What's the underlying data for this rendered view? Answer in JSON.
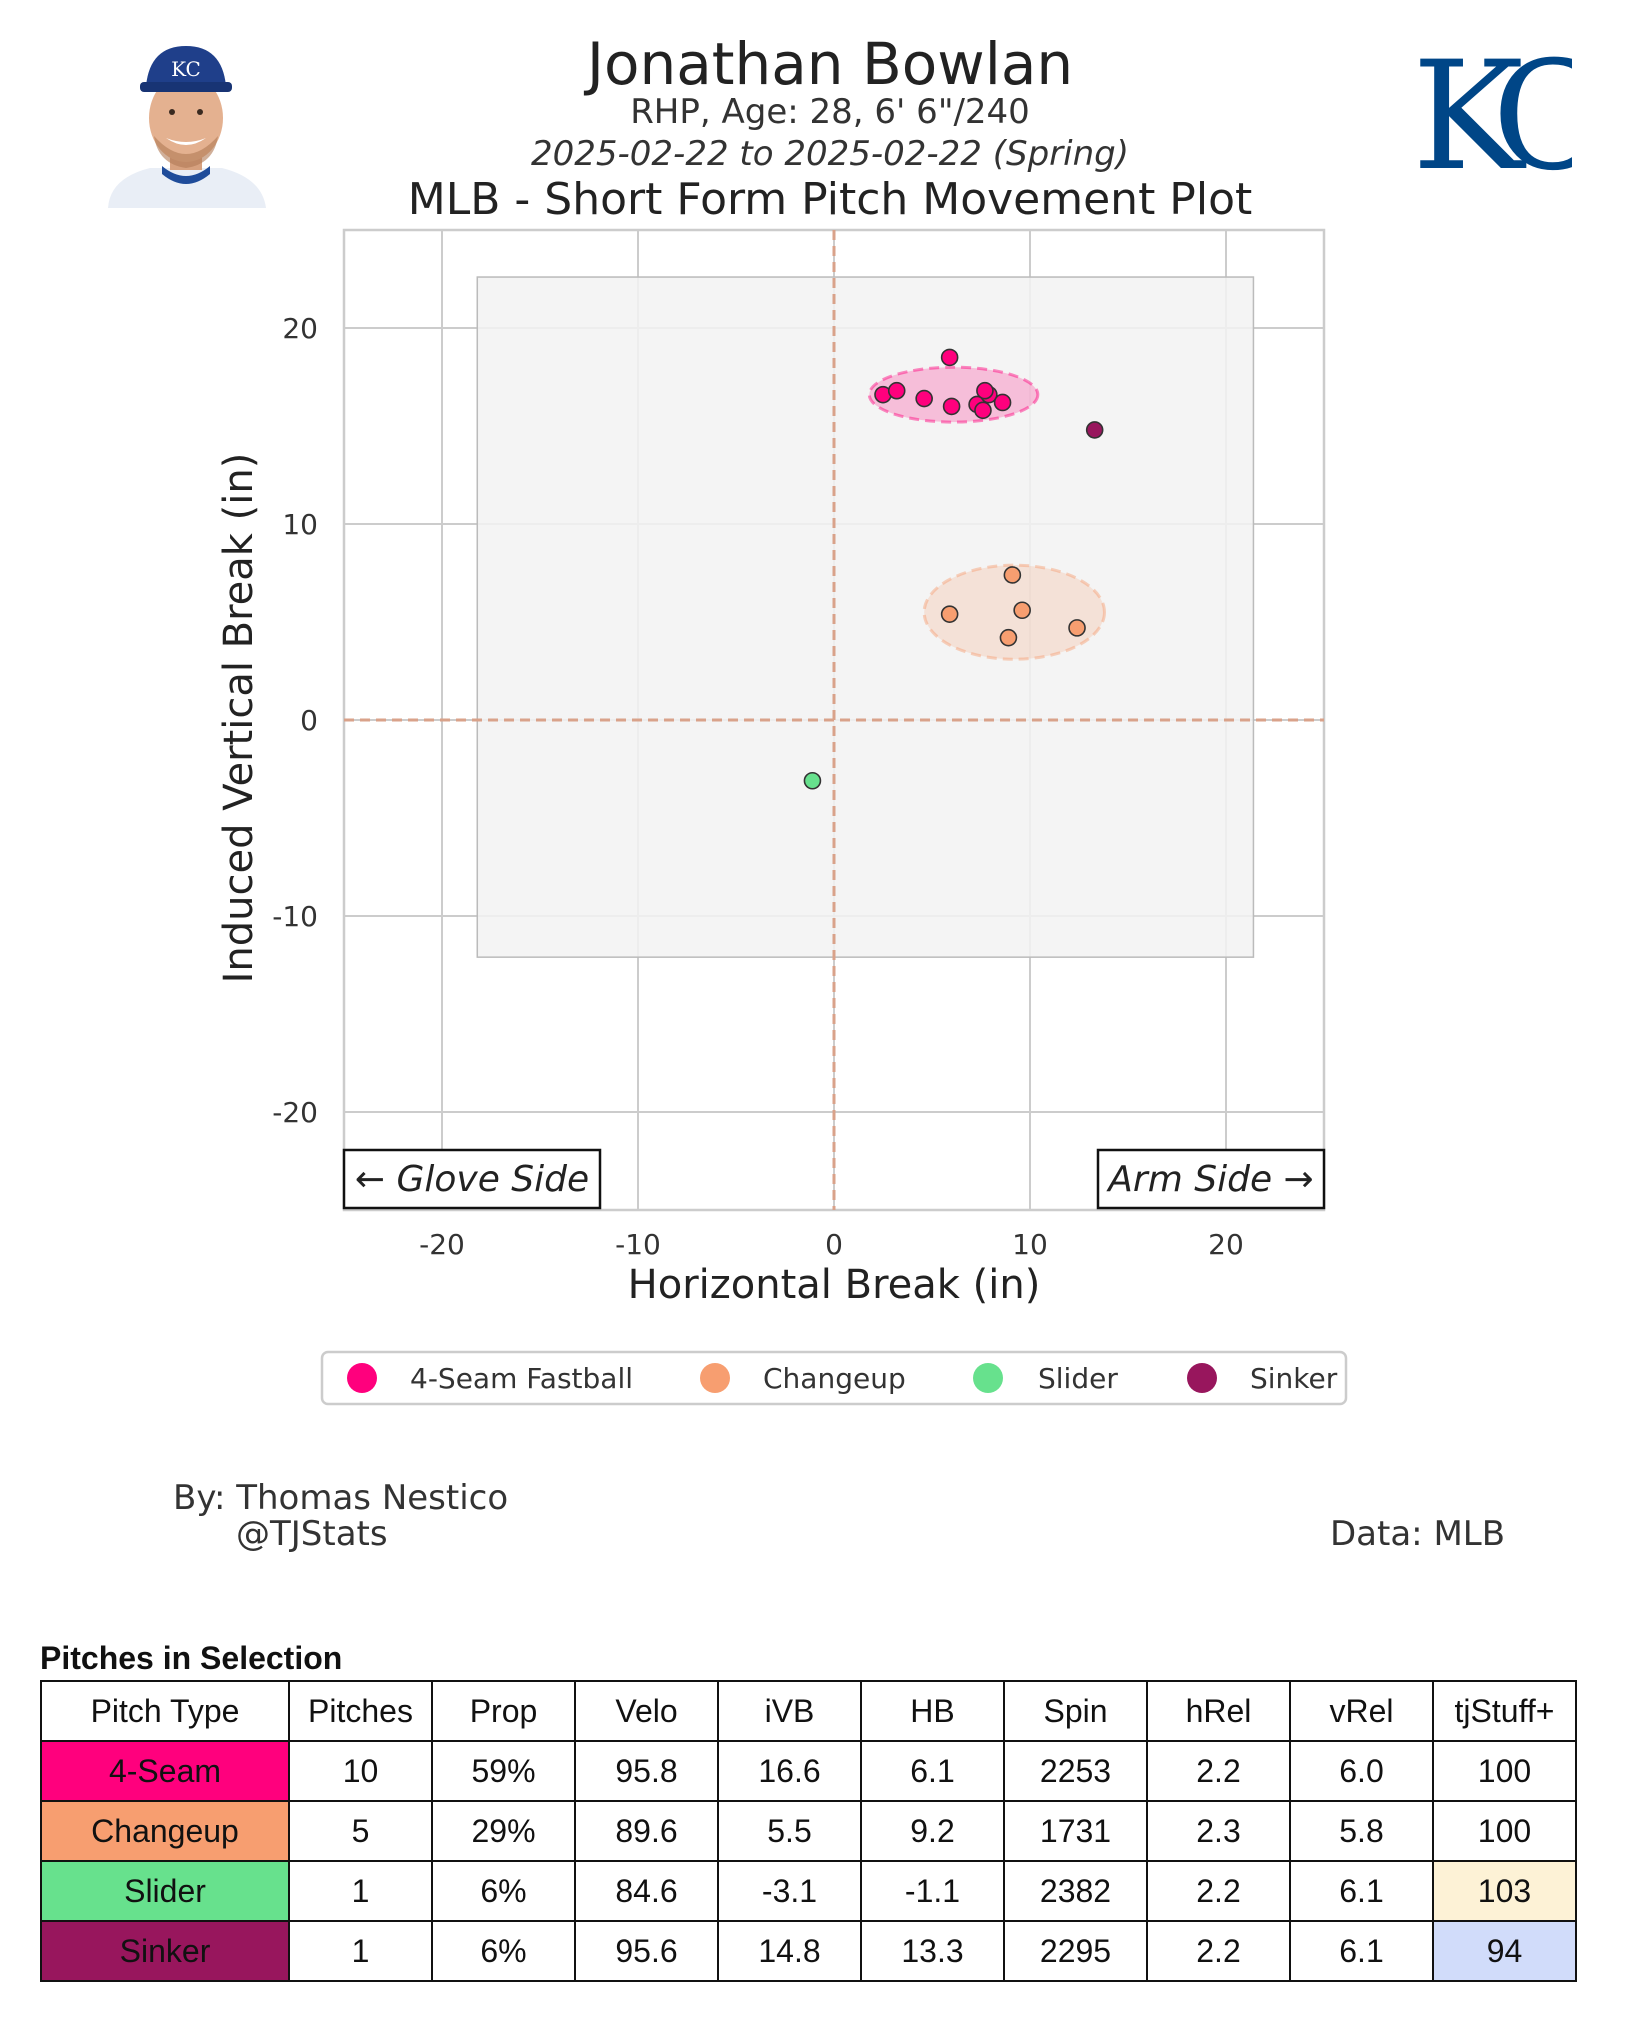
{
  "header": {
    "player_name": "Jonathan Bowlan",
    "player_info": "RHP, Age: 28, 6' 6\"/240",
    "date_range": "2025-02-22 to 2025-02-22 (Spring)",
    "plot_title": "MLB - Short Form Pitch Movement Plot",
    "team_logo_text": "KC",
    "cap_logo_text": "KC"
  },
  "colors": {
    "four_seam": "#FF007D",
    "changeup": "#F79E70",
    "slider": "#67E18D",
    "sinker": "#98165D",
    "plot_box": "#f2f2f2",
    "grid": "#cccccc",
    "zero_line": "#d9a28a",
    "kc_blue": "#004687",
    "stuff_high": "#fdf2d6",
    "stuff_low": "#d1dcfa"
  },
  "chart_data": {
    "type": "scatter",
    "title": "MLB - Short Form Pitch Movement Plot",
    "xlabel": "Horizontal Break (in)",
    "ylabel": "Induced Vertical Break (in)",
    "xlim": [
      -25,
      25
    ],
    "ylim": [
      -25,
      25
    ],
    "xticks": [
      -20,
      -10,
      0,
      10,
      20
    ],
    "yticks": [
      20,
      10,
      0,
      -10,
      -20
    ],
    "xtick_labels": [
      "-20",
      "-10",
      "0",
      "10",
      "20"
    ],
    "ytick_labels": [
      "20",
      "10",
      "0",
      "-10",
      "-20"
    ],
    "grid": true,
    "zone_box": {
      "x": [
        -18.2,
        21.4
      ],
      "y": [
        -12.1,
        22.6
      ]
    },
    "annotations": {
      "glove_side": "← Glove Side",
      "arm_side": "Arm Side →"
    },
    "legend": {
      "position": "bottom-center",
      "entries": [
        "4-Seam Fastball",
        "Changeup",
        "Slider",
        "Sinker"
      ]
    },
    "series": [
      {
        "name": "4-Seam Fastball",
        "color": "#FF007D",
        "x": [
          2.5,
          3.2,
          4.6,
          5.9,
          6.0,
          7.3,
          7.6,
          7.9,
          7.7,
          8.6
        ],
        "y": [
          16.6,
          16.8,
          16.4,
          18.5,
          16.0,
          16.1,
          15.8,
          16.6,
          16.8,
          16.2
        ],
        "ellipse": {
          "cx": 6.1,
          "cy": 16.6,
          "rx": 4.3,
          "ry": 1.4
        }
      },
      {
        "name": "Changeup",
        "color": "#F79E70",
        "x": [
          5.9,
          9.1,
          9.6,
          8.9,
          12.4
        ],
        "y": [
          5.4,
          7.4,
          5.6,
          4.2,
          4.7
        ],
        "ellipse": {
          "cx": 9.2,
          "cy": 5.5,
          "rx": 4.6,
          "ry": 2.4
        }
      },
      {
        "name": "Slider",
        "color": "#67E18D",
        "x": [
          -1.1
        ],
        "y": [
          -3.1
        ]
      },
      {
        "name": "Sinker",
        "color": "#98165D",
        "x": [
          13.3
        ],
        "y": [
          14.8
        ]
      }
    ]
  },
  "credits": {
    "by": "By: Thomas Nestico",
    "handle": "@TJStats",
    "data": "Data: MLB"
  },
  "table": {
    "title": "Pitches in Selection",
    "headers": [
      "Pitch Type",
      "Pitches",
      "Prop",
      "Velo",
      "iVB",
      "HB",
      "Spin",
      "hRel",
      "vRel",
      "tjStuff+"
    ],
    "rows": [
      {
        "type": "4-Seam",
        "color": "#FF007D",
        "cells": [
          "10",
          "59%",
          "95.8",
          "16.6",
          "6.1",
          "2253",
          "2.2",
          "6.0",
          "100"
        ],
        "stuff_color": "#ffffff"
      },
      {
        "type": "Changeup",
        "color": "#F79E70",
        "cells": [
          "5",
          "29%",
          "89.6",
          "5.5",
          "9.2",
          "1731",
          "2.3",
          "5.8",
          "100"
        ],
        "stuff_color": "#ffffff"
      },
      {
        "type": "Slider",
        "color": "#67E18D",
        "cells": [
          "1",
          "6%",
          "84.6",
          "-3.1",
          "-1.1",
          "2382",
          "2.2",
          "6.1",
          "103"
        ],
        "stuff_color": "#fdf2d6"
      },
      {
        "type": "Sinker",
        "color": "#98165D",
        "cells": [
          "1",
          "6%",
          "95.6",
          "14.8",
          "13.3",
          "2295",
          "2.2",
          "6.1",
          "94"
        ],
        "stuff_color": "#d1dcfa"
      }
    ]
  }
}
